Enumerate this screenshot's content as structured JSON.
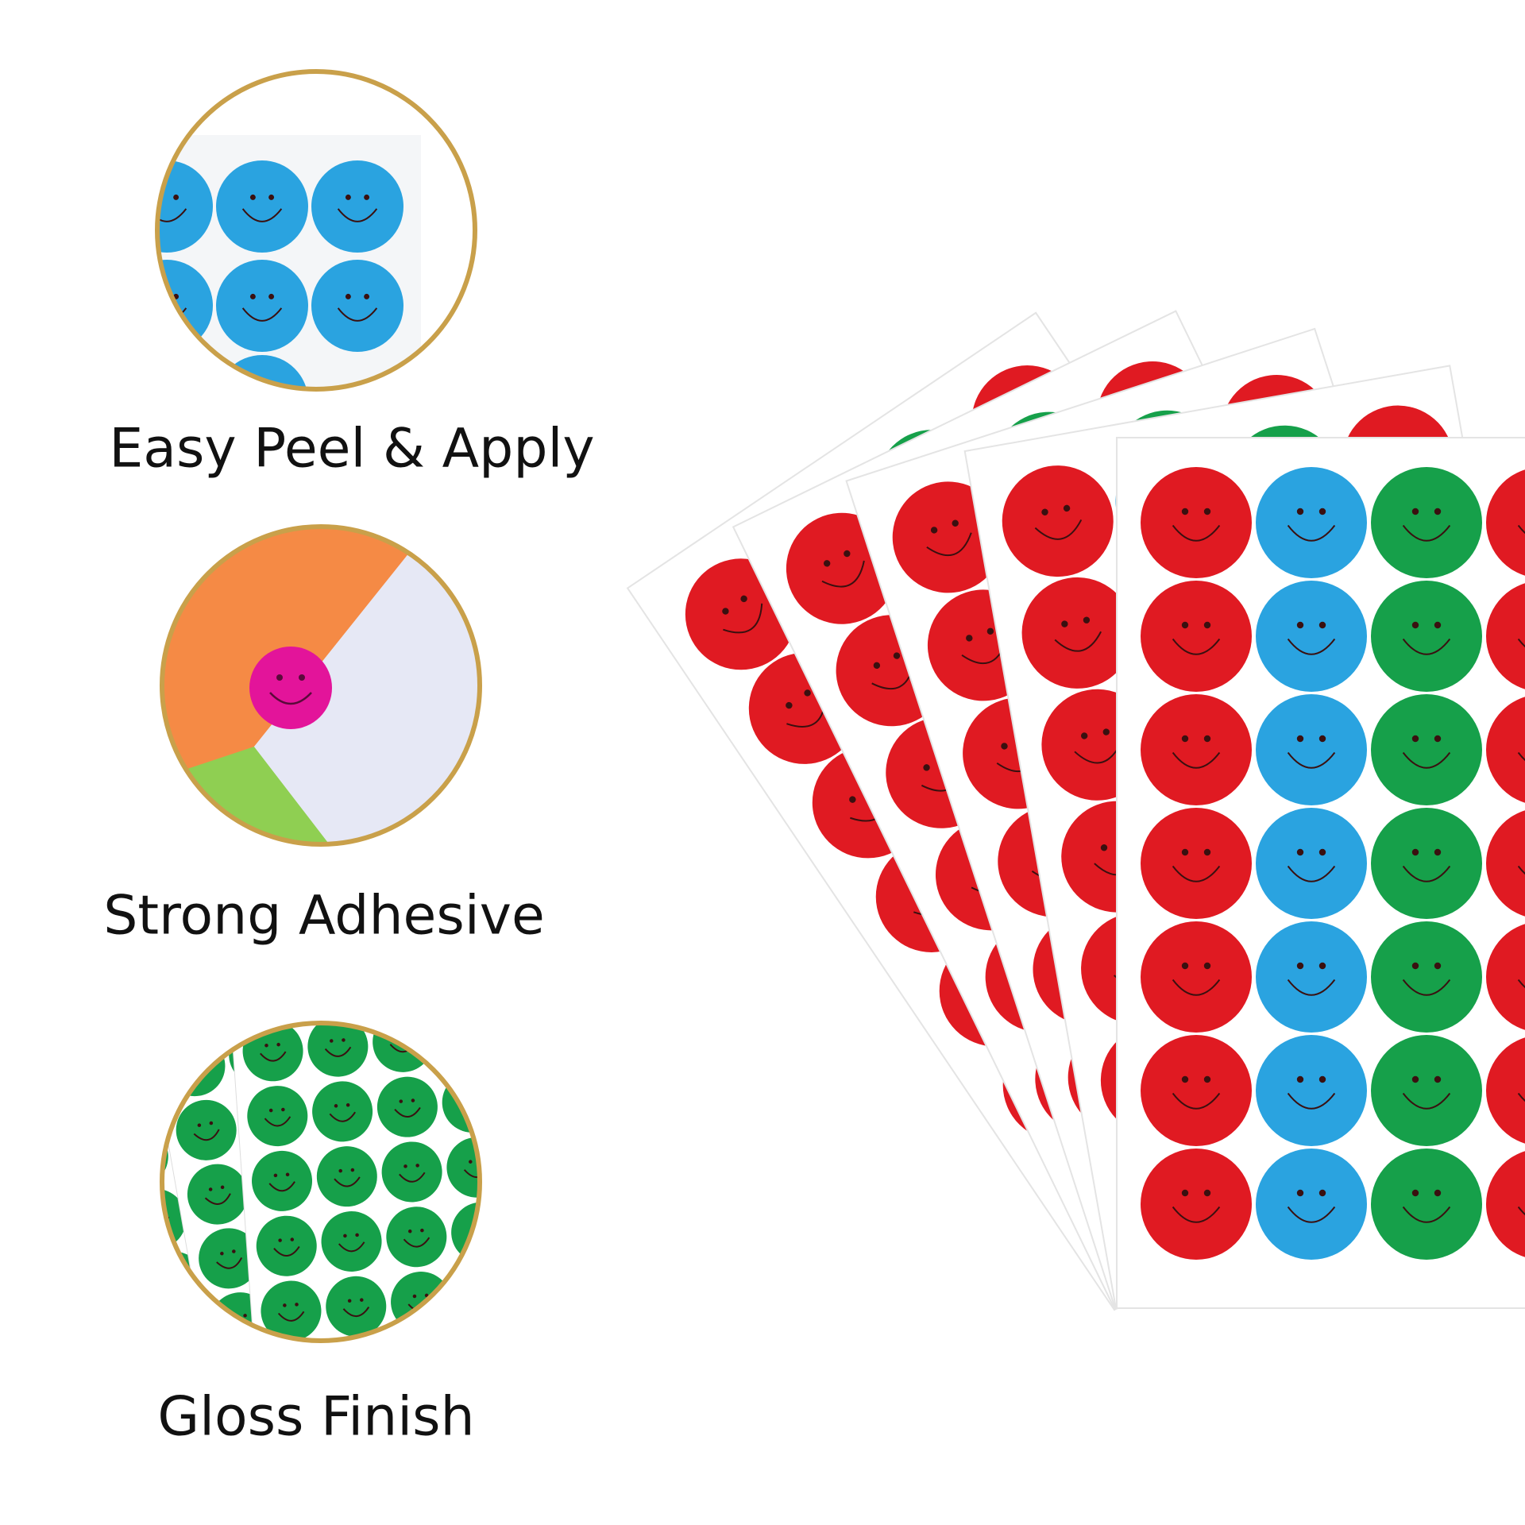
{
  "features": [
    {
      "label": "Easy Peel & Apply"
    },
    {
      "label": "Strong Adhesive"
    },
    {
      "label": "Gloss Finish"
    }
  ]
}
